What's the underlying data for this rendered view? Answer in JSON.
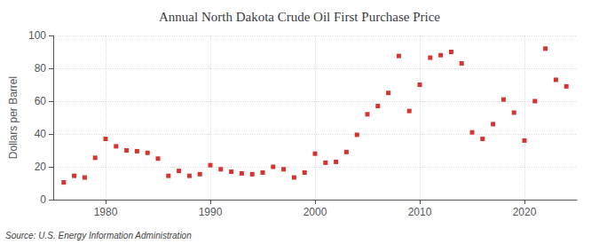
{
  "chart_data": {
    "type": "scatter",
    "title": "Annual North Dakota Crude Oil First Purchase Price",
    "ylabel": "Dollars per Barrel",
    "source": "Source: U.S. Energy Information Administration",
    "x": [
      1976,
      1977,
      1978,
      1979,
      1980,
      1981,
      1982,
      1983,
      1984,
      1985,
      1986,
      1987,
      1988,
      1989,
      1990,
      1991,
      1992,
      1993,
      1994,
      1995,
      1996,
      1997,
      1998,
      1999,
      2000,
      2001,
      2002,
      2003,
      2004,
      2005,
      2006,
      2007,
      2008,
      2009,
      2010,
      2011,
      2012,
      2013,
      2014,
      2015,
      2016,
      2017,
      2018,
      2019,
      2020,
      2021,
      2022,
      2023,
      2024
    ],
    "values": [
      10.5,
      14.5,
      13.5,
      25.5,
      37.0,
      32.5,
      30.0,
      29.5,
      28.5,
      25.0,
      14.5,
      17.5,
      14.5,
      15.5,
      21.0,
      18.5,
      17.0,
      16.0,
      15.5,
      16.5,
      20.0,
      18.5,
      13.5,
      16.5,
      28.0,
      22.5,
      23.0,
      29.0,
      39.5,
      52.0,
      57.0,
      65.0,
      87.5,
      54.0,
      70.0,
      86.5,
      88.0,
      90.0,
      83.0,
      41.0,
      37.0,
      46.0,
      61.0,
      53.0,
      36.0,
      60.0,
      92.0,
      73.0,
      69.0
    ],
    "color": "#cc0000",
    "marker": "square",
    "xlim": [
      1975,
      2025
    ],
    "xticks": [
      1980,
      1990,
      2000,
      2010,
      2020
    ],
    "ylim": [
      0,
      100
    ],
    "yticks": [
      0,
      20,
      40,
      60,
      80,
      100
    ],
    "grid": true
  }
}
